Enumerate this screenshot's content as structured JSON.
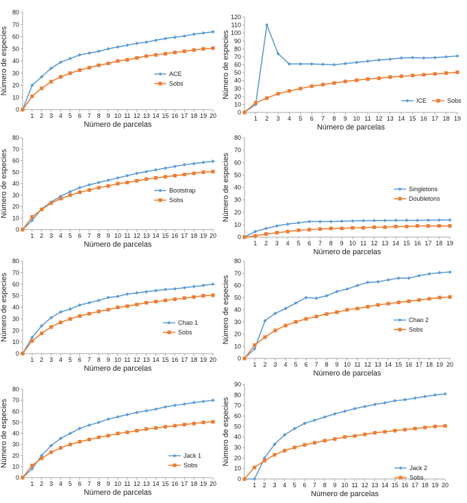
{
  "colors": {
    "blue": "#5b9bd5",
    "orange": "#ed7d31",
    "axis": "#a6a6a6",
    "text": "#222222"
  },
  "markers": {
    "blue": "diamond",
    "orange": "square"
  },
  "chart_data": [
    {
      "type": "line",
      "xlabel": "Número de parcelas",
      "ylabel": "Número de especies",
      "ylim": [
        0,
        80
      ],
      "yticks": [
        0,
        10,
        20,
        30,
        40,
        50,
        60,
        70,
        80
      ],
      "x": [
        0,
        1,
        2,
        3,
        4,
        5,
        6,
        7,
        8,
        9,
        10,
        11,
        12,
        13,
        14,
        15,
        16,
        17,
        18,
        19,
        20
      ],
      "legend_position": "right",
      "series": [
        {
          "name": "ACE",
          "color": "blue",
          "values": [
            0,
            20,
            27,
            34,
            39,
            42,
            45,
            46.5,
            48,
            50,
            51.5,
            53,
            54.5,
            55.5,
            57,
            58.5,
            59.5,
            60.5,
            62,
            63,
            64
          ]
        },
        {
          "name": "Sobs",
          "color": "orange",
          "values": [
            0,
            11,
            17.5,
            23,
            27,
            30,
            32.5,
            34.5,
            36.5,
            38,
            40,
            41,
            42.5,
            44,
            45,
            46,
            47,
            48,
            49,
            50,
            50.5
          ]
        }
      ]
    },
    {
      "type": "line",
      "xlabel": "Número de parcelas",
      "ylabel": "Número de especies",
      "ylim": [
        0,
        120
      ],
      "yticks": [
        0,
        10,
        20,
        30,
        40,
        50,
        60,
        70,
        80,
        90,
        100,
        110,
        120
      ],
      "x": [
        0,
        1,
        2,
        3,
        4,
        5,
        6,
        7,
        8,
        9,
        10,
        11,
        12,
        13,
        14,
        15,
        16,
        17,
        18,
        19
      ],
      "legend_position": "bottom-right",
      "series": [
        {
          "name": "ICE",
          "color": "blue",
          "values": [
            0,
            10,
            110,
            74,
            61,
            61,
            61,
            60.5,
            60,
            61.5,
            63,
            64.5,
            66,
            67,
            68.5,
            69,
            68.5,
            69,
            70,
            71
          ]
        },
        {
          "name": "Sobs",
          "color": "orange",
          "values": [
            0,
            12,
            18,
            23.5,
            27,
            30,
            33,
            35,
            37,
            39,
            40.5,
            42,
            43,
            44.5,
            45.5,
            46.5,
            47.5,
            48.5,
            49.5,
            50.5
          ]
        }
      ]
    },
    {
      "type": "line",
      "xlabel": "Número de parcelas",
      "ylabel": "Número de especies",
      "ylim": [
        0,
        80
      ],
      "yticks": [
        0,
        10,
        20,
        30,
        40,
        50,
        60,
        70,
        80
      ],
      "x": [
        0,
        1,
        2,
        3,
        4,
        5,
        6,
        7,
        8,
        9,
        10,
        11,
        12,
        13,
        14,
        15,
        16,
        17,
        18,
        19,
        20
      ],
      "legend_position": "right",
      "series": [
        {
          "name": "Bootstrap",
          "color": "blue",
          "values": [
            0,
            8,
            18,
            24,
            29,
            33,
            36.5,
            39,
            41,
            43,
            45,
            47,
            49,
            50.5,
            52,
            53.5,
            55,
            56.5,
            57.5,
            58.5,
            59.5
          ]
        },
        {
          "name": "Sobs",
          "color": "orange",
          "values": [
            0,
            11,
            17.5,
            23,
            27,
            30,
            32.5,
            34.5,
            36.5,
            38,
            40,
            41,
            42.5,
            44,
            45,
            46,
            47,
            48,
            49,
            50,
            50.5
          ]
        }
      ]
    },
    {
      "type": "line",
      "xlabel": "Número de parcelas",
      "ylabel": "Número de especies",
      "ylim": [
        0,
        80
      ],
      "yticks": [
        0,
        10,
        20,
        30,
        40,
        50,
        60,
        70,
        80
      ],
      "x": [
        0,
        1,
        2,
        3,
        4,
        5,
        6,
        7,
        8,
        9,
        10,
        11,
        12,
        13,
        14,
        15,
        16,
        17,
        18,
        19
      ],
      "legend_position": "right",
      "series": [
        {
          "name": "Singletons",
          "color": "blue",
          "values": [
            0,
            4.5,
            7,
            9,
            10.5,
            11.5,
            12.5,
            12.5,
            12.5,
            12.8,
            13,
            13.2,
            13.3,
            13.4,
            13.5,
            13.5,
            13.5,
            13.6,
            13.7,
            13.8
          ]
        },
        {
          "name": "Doubletons",
          "color": "orange",
          "values": [
            0,
            1,
            2.5,
            3.5,
            4.5,
            5.5,
            6,
            6.5,
            7,
            7,
            7.5,
            7.5,
            8,
            8,
            8.5,
            8.5,
            9,
            9,
            9,
            9
          ]
        }
      ]
    },
    {
      "type": "line",
      "xlabel": "Número de parcelas",
      "ylabel": "Número de especies",
      "ylim": [
        0,
        80
      ],
      "yticks": [
        0,
        10,
        20,
        30,
        40,
        50,
        60,
        70,
        80
      ],
      "x": [
        0,
        1,
        2,
        3,
        4,
        5,
        6,
        7,
        8,
        9,
        10,
        11,
        12,
        13,
        14,
        15,
        16,
        17,
        18,
        19,
        20
      ],
      "legend_position": "right",
      "series": [
        {
          "name": "Chao 1",
          "color": "blue",
          "values": [
            0,
            14,
            24,
            31,
            36,
            38.5,
            42,
            44,
            46,
            48.5,
            49.5,
            51.5,
            52.5,
            53.5,
            54.5,
            55.5,
            56,
            57,
            58,
            59,
            60
          ]
        },
        {
          "name": "Sobs",
          "color": "orange",
          "values": [
            0,
            11,
            17.5,
            23,
            27,
            30,
            32.5,
            34.5,
            36.5,
            38,
            40,
            41,
            42.5,
            44,
            45,
            46,
            47,
            48,
            49,
            50,
            50.5
          ]
        }
      ]
    },
    {
      "type": "line",
      "xlabel": "Número de parcelas",
      "ylabel": "Número de especies",
      "ylim": [
        0,
        80
      ],
      "yticks": [
        0,
        10,
        20,
        30,
        40,
        50,
        60,
        70,
        80
      ],
      "x": [
        0,
        1,
        2,
        3,
        4,
        5,
        6,
        7,
        8,
        9,
        10,
        11,
        12,
        13,
        14,
        15,
        16,
        17,
        18,
        19,
        20
      ],
      "legend_position": "right",
      "series": [
        {
          "name": "Chao 2",
          "color": "blue",
          "values": [
            0,
            8,
            31,
            37,
            41,
            45.5,
            50,
            49.5,
            51.5,
            55,
            57,
            60,
            62.5,
            63,
            64.5,
            66,
            66,
            68,
            69.5,
            70.5,
            71
          ]
        },
        {
          "name": "Sobs",
          "color": "orange",
          "values": [
            0,
            11,
            17.5,
            23,
            27,
            30,
            32.5,
            34.5,
            36.5,
            38,
            40,
            41,
            42.5,
            44,
            45,
            46,
            47,
            48,
            49,
            50,
            50.5
          ]
        }
      ]
    },
    {
      "type": "line",
      "xlabel": "Número de parcelas",
      "ylabel": "Número de especies",
      "ylim": [
        0,
        80
      ],
      "yticks": [
        0,
        10,
        20,
        30,
        40,
        50,
        60,
        70,
        80
      ],
      "x": [
        0,
        1,
        2,
        3,
        4,
        5,
        6,
        7,
        8,
        9,
        10,
        11,
        12,
        13,
        14,
        15,
        16,
        17,
        18,
        19,
        20
      ],
      "legend_position": "bottom-right",
      "series": [
        {
          "name": "Jack 1",
          "color": "blue",
          "values": [
            0,
            8,
            20,
            29,
            35.5,
            40,
            44.5,
            47.5,
            50,
            53,
            55,
            57,
            59,
            60.5,
            62,
            64,
            65.5,
            66.5,
            68,
            69,
            70
          ]
        },
        {
          "name": "Sobs",
          "color": "orange",
          "values": [
            0,
            11,
            17.5,
            23,
            27,
            30,
            32.5,
            34.5,
            36.5,
            38,
            40,
            41,
            42.5,
            44,
            45,
            46,
            47,
            48,
            49,
            50,
            50.5
          ]
        }
      ]
    },
    {
      "type": "line",
      "xlabel": "Número de parcelas",
      "ylabel": "Número de especies",
      "ylim": [
        0,
        90
      ],
      "yticks": [
        0,
        10,
        20,
        30,
        40,
        50,
        60,
        70,
        80,
        90
      ],
      "x": [
        0,
        1,
        2,
        3,
        4,
        5,
        6,
        7,
        8,
        9,
        10,
        11,
        12,
        13,
        14,
        15,
        16,
        17,
        18,
        19,
        20
      ],
      "legend_position": "bottom-right",
      "series": [
        {
          "name": "Jack 2",
          "color": "blue",
          "values": [
            0,
            0,
            20,
            33,
            42,
            48,
            53,
            56,
            59,
            62,
            64.5,
            67,
            69,
            71,
            72.5,
            74.5,
            75.5,
            77,
            78.5,
            80,
            81
          ]
        },
        {
          "name": "Sobs",
          "color": "orange",
          "values": [
            0,
            11,
            17.5,
            23,
            27,
            30,
            32.5,
            34.5,
            36.5,
            38,
            40,
            41,
            42.5,
            44,
            45,
            46,
            47,
            48,
            49,
            50,
            50.5
          ]
        }
      ]
    }
  ]
}
